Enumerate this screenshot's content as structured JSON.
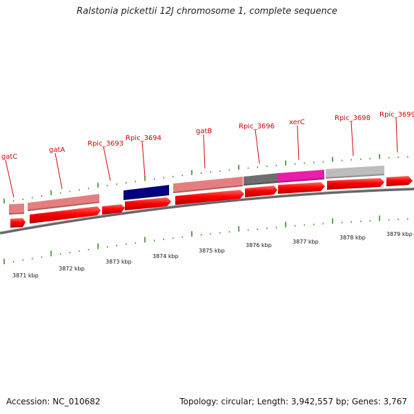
{
  "title": "Ralstonia pickettii 12J chromosome 1, complete sequence",
  "footer": {
    "accession": "Accession: NC_010682",
    "summary": "Topology: circular; Length: 3,942,557 bp; Genes: 3,767"
  },
  "genes": [
    {
      "name": "gatC",
      "feature_color": "#e57f7f"
    },
    {
      "name": "gatA",
      "feature_color": "#e57f7f"
    },
    {
      "name": "Rpic_3693",
      "feature_color": "none"
    },
    {
      "name": "Rpic_3694",
      "feature_color": "#000080"
    },
    {
      "name": "gatB",
      "feature_color": "#e57f7f"
    },
    {
      "name": "Rpic_3696",
      "feature_color": "#6e6e6e"
    },
    {
      "name": "xerC",
      "feature_color": "#e91eaa"
    },
    {
      "name": "Rpic_3698",
      "feature_color": "#bdbdbd"
    },
    {
      "name": "Rpic_3699",
      "feature_color": "none"
    }
  ],
  "cds_color": "#ff0000",
  "tick_color": "#2e8b1e",
  "label_color": "#d40000",
  "scale_labels": [
    "3871 kbp",
    "3872 kbp",
    "3873 kbp",
    "3874 kbp",
    "3875 kbp",
    "3876 kbp",
    "3877 kbp",
    "3878 kbp",
    "3879 kbp"
  ]
}
